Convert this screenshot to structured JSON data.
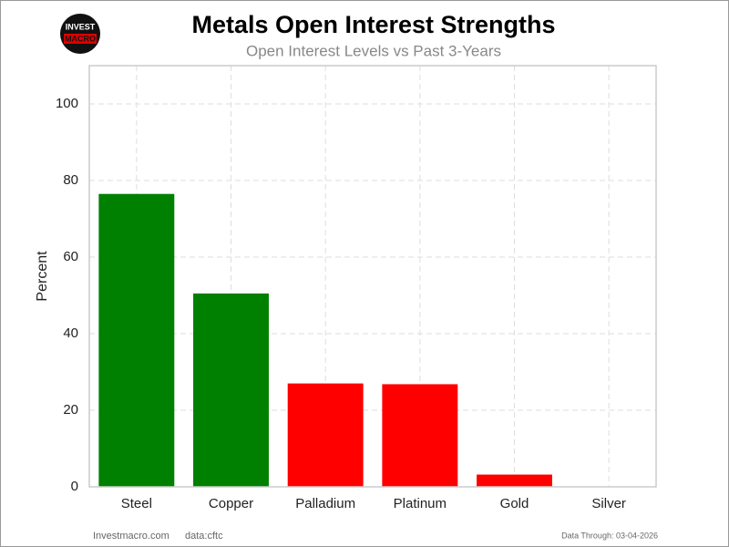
{
  "chart_data": {
    "type": "bar",
    "title": "Metals Open Interest Strengths",
    "subtitle": "Open Interest Levels vs Past 3-Years",
    "ylabel": "Percent",
    "categories": [
      "Steel",
      "Copper",
      "Palladium",
      "Platinum",
      "Gold",
      "Silver"
    ],
    "values": [
      76.5,
      50.5,
      27,
      26.8,
      3.2,
      0
    ],
    "colors": [
      "#008000",
      "#008000",
      "#ff0000",
      "#ff0000",
      "#ff0000",
      "#ff0000"
    ],
    "ylim": [
      0,
      110
    ],
    "yticks": [
      0,
      20,
      40,
      60,
      80,
      100
    ],
    "grid": true
  },
  "logo": {
    "line1": "INVEST",
    "line2": "MACRO"
  },
  "footer": {
    "site": "Investmacro.com",
    "source": "data:cftc",
    "date": "Data Through: 03-04-2026"
  }
}
